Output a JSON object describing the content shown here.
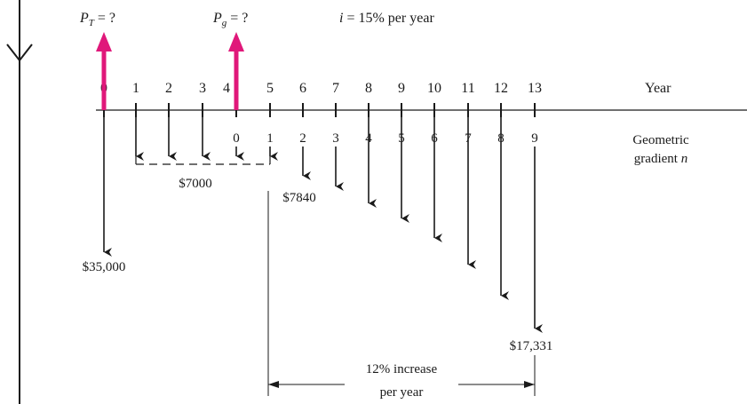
{
  "title": {
    "pt_symbol": "P",
    "pt_sub": "T",
    "pt_rest": " = ?",
    "pg_symbol": "P",
    "pg_sub": "g",
    "pg_rest": " = ?",
    "rate_symbol": "i",
    "rate_rest": " = 15% per year"
  },
  "axis": {
    "year_label": "Year",
    "years": [
      "0",
      "1",
      "2",
      "3",
      "4",
      "5",
      "6",
      "7",
      "8",
      "9",
      "10",
      "11",
      "12",
      "13"
    ],
    "gradient_label_line1": "Geometric",
    "gradient_label_line2": "gradient ",
    "gradient_label_n": "n",
    "gradient_n": [
      "0",
      "1",
      "2",
      "3",
      "4",
      "5",
      "6",
      "7",
      "8",
      "9"
    ]
  },
  "cash_flows": {
    "initial": "$35,000",
    "uniform": "$7000",
    "gradient_start": "$7840",
    "gradient_end": "$17,331",
    "increase_line1": "12% increase",
    "increase_line2": "per year"
  },
  "colors": {
    "arrow_up": "#e0187a",
    "line": "#1a1a1a"
  }
}
